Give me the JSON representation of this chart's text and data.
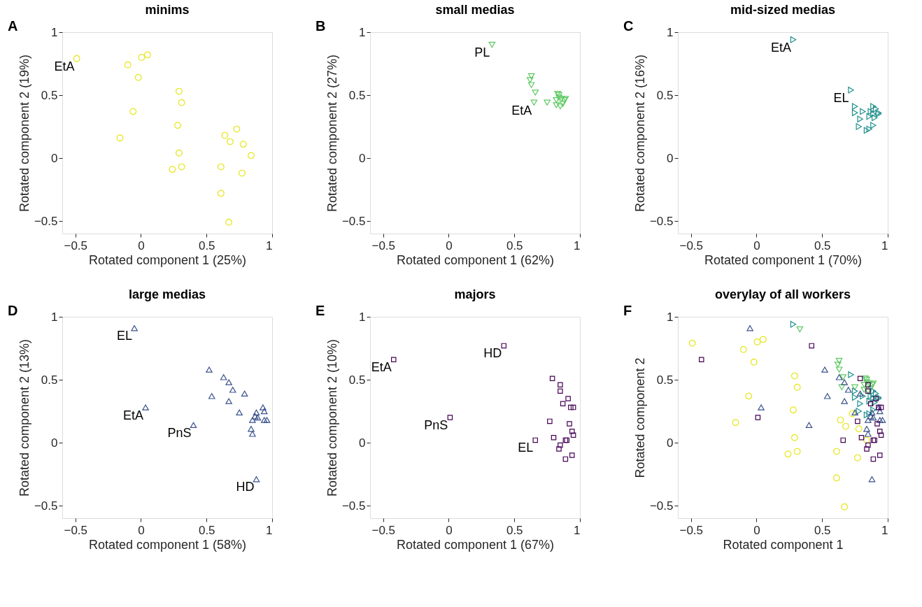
{
  "chart_data": [
    {
      "type": "scatter",
      "title": "minims",
      "xlabel": "Rotated component 1 (25%)",
      "ylabel": "Rotated component 2 (19%)",
      "xlim": [
        -0.6,
        1
      ],
      "ylim": [
        -0.6,
        1
      ],
      "xticks": [
        -0.5,
        0,
        0.5,
        1
      ],
      "yticks": [
        -0.5,
        0,
        0.5,
        1
      ],
      "grid": false,
      "annotations": [
        "A",
        {
          "text": "EtA",
          "x": -0.49,
          "y": 0.79
        }
      ],
      "series": [
        {
          "color": "#e6e619",
          "marker": "circle",
          "x": [
            -0.49,
            -0.1,
            0.005,
            0.05,
            -0.02,
            -0.06,
            -0.16,
            0.29,
            0.31,
            0.28,
            0.29,
            0.24,
            0.31,
            0.73,
            0.64,
            0.68,
            0.78,
            0.84,
            0.61,
            0.77,
            0.61,
            0.67
          ],
          "values": [
            0.79,
            0.74,
            0.8,
            0.82,
            0.64,
            0.37,
            0.16,
            0.53,
            0.44,
            0.26,
            0.04,
            -0.09,
            -0.07,
            0.23,
            0.18,
            0.13,
            0.11,
            0.02,
            -0.07,
            -0.12,
            -0.28,
            -0.51
          ]
        }
      ]
    },
    {
      "type": "scatter",
      "title": "small medias",
      "xlabel": "Rotated component 1 (62%)",
      "ylabel": "Rotated component 2 (27%)",
      "xlim": [
        -0.6,
        1
      ],
      "ylim": [
        -0.6,
        1
      ],
      "xticks": [
        -0.5,
        0,
        0.5,
        1
      ],
      "yticks": [
        -0.5,
        0,
        0.5,
        1
      ],
      "grid": false,
      "annotations": [
        "B",
        {
          "text": "PL",
          "x": 0.33,
          "y": 0.9
        },
        {
          "text": "EtA",
          "x": 0.65,
          "y": 0.44
        }
      ],
      "series": [
        {
          "color": "#5ec962",
          "marker": "triangle-down",
          "x": [
            0.33,
            0.63,
            0.62,
            0.63,
            0.66,
            0.65,
            0.75,
            0.83,
            0.84,
            0.82,
            0.86,
            0.88,
            0.89,
            0.82,
            0.85,
            0.87,
            0.84
          ],
          "values": [
            0.9,
            0.65,
            0.62,
            0.58,
            0.52,
            0.44,
            0.44,
            0.51,
            0.48,
            0.46,
            0.47,
            0.46,
            0.47,
            0.42,
            0.41,
            0.43,
            0.5
          ]
        }
      ]
    },
    {
      "type": "scatter",
      "title": "mid-sized medias",
      "xlabel": "Rotated component 1 (70%)",
      "ylabel": "Rotated component 2 (16%)",
      "xlim": [
        -0.6,
        1
      ],
      "ylim": [
        -0.6,
        1
      ],
      "xticks": [
        -0.5,
        0,
        0.5,
        1
      ],
      "yticks": [
        -0.5,
        0,
        0.5,
        1
      ],
      "grid": false,
      "annotations": [
        "C",
        {
          "text": "EtA",
          "x": 0.28,
          "y": 0.94
        },
        {
          "text": "EL",
          "x": 0.72,
          "y": 0.54
        }
      ],
      "series": [
        {
          "color": "#21918c",
          "marker": "triangle-right",
          "x": [
            0.28,
            0.72,
            0.75,
            0.75,
            0.81,
            0.79,
            0.78,
            0.84,
            0.86,
            0.89,
            0.86,
            0.89,
            0.91,
            0.93,
            0.89,
            0.87,
            0.9,
            0.93
          ],
          "values": [
            0.94,
            0.54,
            0.41,
            0.36,
            0.37,
            0.31,
            0.25,
            0.22,
            0.23,
            0.26,
            0.33,
            0.41,
            0.39,
            0.35,
            0.35,
            0.37,
            0.32,
            0.36
          ]
        }
      ]
    },
    {
      "type": "scatter",
      "title": "large medias",
      "xlabel": "Rotated component 1 (58%)",
      "ylabel": "Rotated component 2 (13%)",
      "xlim": [
        -0.6,
        1
      ],
      "ylim": [
        -0.6,
        1
      ],
      "xticks": [
        -0.5,
        0,
        0.5,
        1
      ],
      "yticks": [
        -0.5,
        0,
        0.5,
        1
      ],
      "grid": false,
      "annotations": [
        "D",
        {
          "text": "EL",
          "x": -0.05,
          "y": 0.91
        },
        {
          "text": "EtA",
          "x": 0.035,
          "y": 0.28
        },
        {
          "text": "PnS",
          "x": 0.4,
          "y": 0.14
        },
        {
          "text": "HD",
          "x": 0.88,
          "y": -0.29
        }
      ],
      "series": [
        {
          "color": "#3b528b",
          "marker": "triangle",
          "x": [
            -0.05,
            0.035,
            0.4,
            0.88,
            0.52,
            0.54,
            0.63,
            0.67,
            0.7,
            0.79,
            0.67,
            0.75,
            0.88,
            0.93,
            0.94,
            0.87,
            0.89,
            0.85,
            0.94,
            0.96,
            0.84,
            0.85
          ],
          "values": [
            0.91,
            0.28,
            0.14,
            -0.29,
            0.58,
            0.37,
            0.52,
            0.48,
            0.42,
            0.39,
            0.33,
            0.24,
            0.24,
            0.28,
            0.25,
            0.21,
            0.2,
            0.18,
            0.18,
            0.18,
            0.11,
            0.07
          ]
        }
      ]
    },
    {
      "type": "scatter",
      "title": "majors",
      "xlabel": "Rotated component 1 (67%)",
      "ylabel": "Rotated component 2 (10%)",
      "xlim": [
        -0.6,
        1
      ],
      "ylim": [
        -0.6,
        1
      ],
      "xticks": [
        -0.5,
        0,
        0.5,
        1
      ],
      "yticks": [
        -0.5,
        0,
        0.5,
        1
      ],
      "grid": false,
      "annotations": [
        "E",
        {
          "text": "EtA",
          "x": -0.42,
          "y": 0.66
        },
        {
          "text": "HD",
          "x": 0.42,
          "y": 0.77
        },
        {
          "text": "PnS",
          "x": 0.01,
          "y": 0.2
        },
        {
          "text": "EL",
          "x": 0.66,
          "y": 0.02
        }
      ],
      "series": [
        {
          "color": "#440154",
          "marker": "square",
          "x": [
            -0.42,
            0.42,
            0.01,
            0.66,
            0.79,
            0.85,
            0.85,
            0.91,
            0.87,
            0.93,
            0.95,
            0.77,
            0.92,
            0.94,
            0.95,
            0.8,
            0.89,
            0.9,
            0.85,
            0.84,
            0.89,
            0.94
          ],
          "values": [
            0.66,
            0.77,
            0.2,
            0.02,
            0.51,
            0.46,
            0.41,
            0.35,
            0.31,
            0.28,
            0.28,
            0.17,
            0.15,
            0.09,
            0.06,
            0.04,
            0.02,
            0.02,
            -0.02,
            -0.05,
            -0.13,
            -0.1
          ]
        }
      ]
    },
    {
      "type": "scatter",
      "title": "overylay of all workers",
      "xlabel": "Rotated component 1",
      "ylabel": "Rotated component 2",
      "xlim": [
        -0.6,
        1
      ],
      "ylim": [
        -0.6,
        1
      ],
      "xticks": [
        -0.5,
        0,
        0.5,
        1
      ],
      "yticks": [
        -0.5,
        0,
        0.5,
        1
      ],
      "grid": false,
      "annotations": [
        "F"
      ],
      "series": [
        {
          "color": "#e6e619",
          "marker": "circle",
          "x": [
            -0.49,
            -0.1,
            0.005,
            0.05,
            -0.02,
            -0.06,
            -0.16,
            0.29,
            0.31,
            0.28,
            0.29,
            0.24,
            0.31,
            0.73,
            0.64,
            0.68,
            0.78,
            0.84,
            0.61,
            0.77,
            0.61,
            0.67
          ],
          "values": [
            0.79,
            0.74,
            0.8,
            0.82,
            0.64,
            0.37,
            0.16,
            0.53,
            0.44,
            0.26,
            0.04,
            -0.09,
            -0.07,
            0.23,
            0.18,
            0.13,
            0.11,
            0.02,
            -0.07,
            -0.12,
            -0.28,
            -0.51
          ]
        },
        {
          "color": "#5ec962",
          "marker": "triangle-down",
          "x": [
            0.33,
            0.63,
            0.62,
            0.63,
            0.66,
            0.65,
            0.75,
            0.83,
            0.84,
            0.82,
            0.86,
            0.88,
            0.89,
            0.82,
            0.85,
            0.87,
            0.84
          ],
          "values": [
            0.9,
            0.65,
            0.62,
            0.58,
            0.52,
            0.44,
            0.44,
            0.51,
            0.48,
            0.46,
            0.47,
            0.46,
            0.47,
            0.42,
            0.41,
            0.43,
            0.5
          ]
        },
        {
          "color": "#21918c",
          "marker": "triangle-right",
          "x": [
            0.28,
            0.72,
            0.75,
            0.75,
            0.81,
            0.79,
            0.78,
            0.84,
            0.86,
            0.89,
            0.86,
            0.89,
            0.91,
            0.93,
            0.89,
            0.87,
            0.9,
            0.93
          ],
          "values": [
            0.94,
            0.54,
            0.41,
            0.36,
            0.37,
            0.31,
            0.25,
            0.22,
            0.23,
            0.26,
            0.33,
            0.41,
            0.39,
            0.35,
            0.35,
            0.37,
            0.32,
            0.36
          ]
        },
        {
          "color": "#3b528b",
          "marker": "triangle",
          "x": [
            -0.05,
            0.035,
            0.4,
            0.88,
            0.52,
            0.54,
            0.63,
            0.67,
            0.7,
            0.79,
            0.67,
            0.75,
            0.88,
            0.93,
            0.94,
            0.87,
            0.89,
            0.85,
            0.94,
            0.96,
            0.84,
            0.85
          ],
          "values": [
            0.91,
            0.28,
            0.14,
            -0.29,
            0.58,
            0.37,
            0.52,
            0.48,
            0.42,
            0.39,
            0.33,
            0.24,
            0.24,
            0.28,
            0.25,
            0.21,
            0.2,
            0.18,
            0.18,
            0.18,
            0.11,
            0.07
          ]
        },
        {
          "color": "#440154",
          "marker": "square",
          "x": [
            -0.42,
            0.42,
            0.01,
            0.66,
            0.79,
            0.85,
            0.85,
            0.91,
            0.87,
            0.93,
            0.95,
            0.77,
            0.92,
            0.94,
            0.95,
            0.8,
            0.89,
            0.9,
            0.85,
            0.84,
            0.89,
            0.94
          ],
          "values": [
            0.66,
            0.77,
            0.2,
            0.02,
            0.51,
            0.46,
            0.41,
            0.35,
            0.31,
            0.28,
            0.28,
            0.17,
            0.15,
            0.09,
            0.06,
            0.04,
            0.02,
            0.02,
            -0.02,
            -0.05,
            -0.13,
            -0.1
          ]
        }
      ]
    }
  ]
}
